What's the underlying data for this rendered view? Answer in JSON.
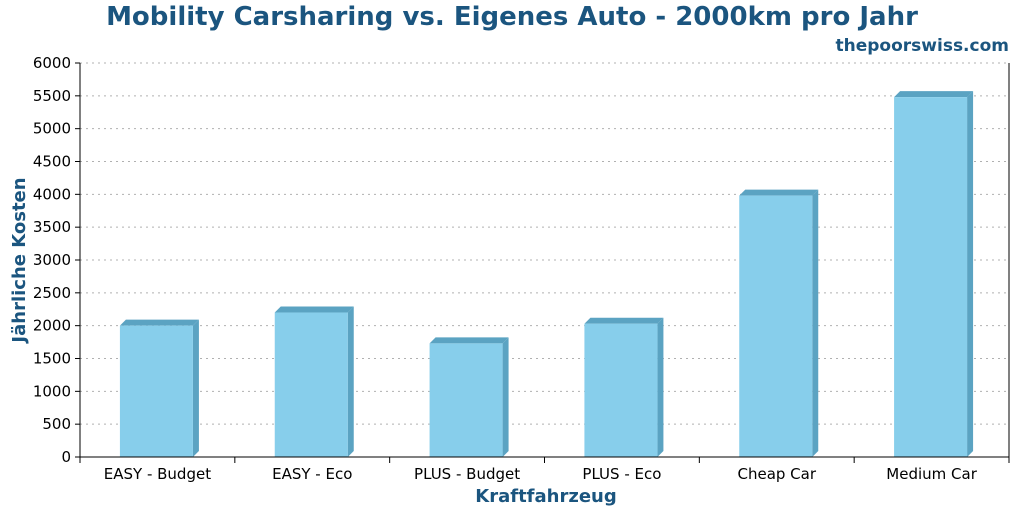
{
  "chart_data": {
    "type": "bar",
    "title": "Mobility Carsharing vs. Eigenes Auto - 2000km pro Jahr",
    "source": "thepoorswiss.com",
    "xlabel": "Kraftfahrzeug",
    "ylabel": "Jährliche Kosten",
    "categories": [
      "EASY - Budget",
      "EASY - Eco",
      "PLUS - Budget",
      "PLUS - Eco",
      "Cheap Car",
      "Medium Car"
    ],
    "values": [
      2000,
      2200,
      1730,
      2030,
      3980,
      5480
    ],
    "ylim": [
      0,
      6000
    ],
    "yticks": [
      "0",
      "500",
      "1000",
      "1500",
      "2000",
      "2500",
      "3000",
      "3500",
      "4000",
      "4500",
      "5000",
      "5500",
      "6000"
    ],
    "grid": true,
    "colors": {
      "title": "#1b557f",
      "bar_front": "#87ceeb",
      "bar_side": "#5ba3c2",
      "grid": "#b0b0b0",
      "axis": "#000000"
    }
  }
}
